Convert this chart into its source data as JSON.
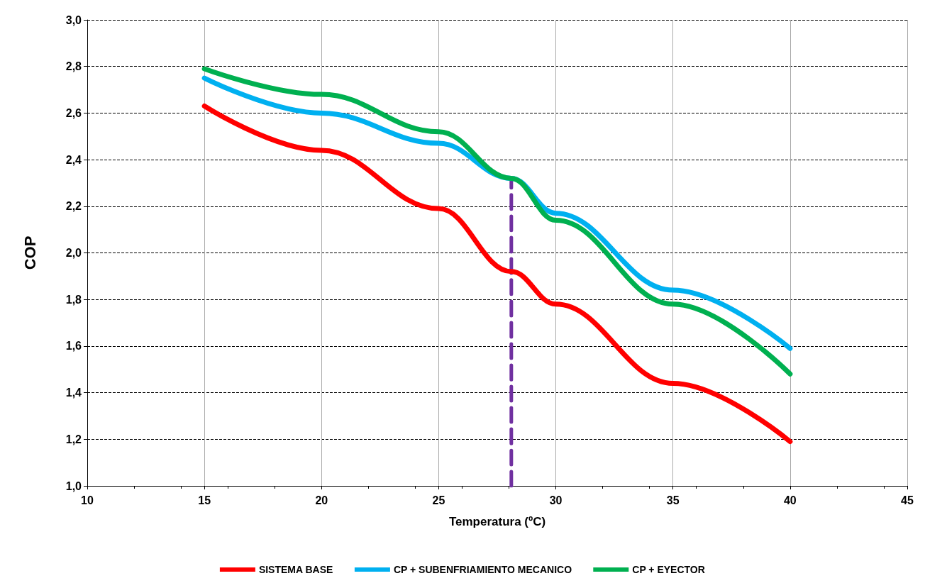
{
  "chart_data": {
    "type": "line",
    "xlabel": "Temperatura (ºC)",
    "ylabel": "COP",
    "xlim": [
      10,
      45
    ],
    "xticks": [
      10,
      15,
      20,
      25,
      30,
      35,
      40,
      45
    ],
    "ylim": [
      1.0,
      3.0
    ],
    "yticks": [
      {
        "value": 1.0,
        "label": "1,0"
      },
      {
        "value": 1.2,
        "label": "1,2"
      },
      {
        "value": 1.4,
        "label": "1,4"
      },
      {
        "value": 1.6,
        "label": "1,6"
      },
      {
        "value": 1.8,
        "label": "1,8"
      },
      {
        "value": 2.0,
        "label": "2,0"
      },
      {
        "value": 2.2,
        "label": "2,2"
      },
      {
        "value": 2.4,
        "label": "2,4"
      },
      {
        "value": 2.6,
        "label": "2,6"
      },
      {
        "value": 2.8,
        "label": "2,8"
      },
      {
        "value": 3.0,
        "label": "3,0"
      }
    ],
    "grid": true,
    "legend": "bottom",
    "marker": "none",
    "line_style": "solid",
    "x": [
      15,
      20,
      25,
      28.1,
      30,
      35,
      40
    ],
    "series": [
      {
        "name": "SISTEMA BASE",
        "color": "#ff0000",
        "values": [
          2.63,
          2.44,
          2.19,
          1.92,
          1.78,
          1.44,
          1.19
        ]
      },
      {
        "name": "CP + SUBENFRIAMIENTO MECANICO",
        "color": "#00b0f0",
        "values": [
          2.75,
          2.6,
          2.47,
          2.32,
          2.17,
          1.84,
          1.59
        ]
      },
      {
        "name": "CP + EYECTOR",
        "color": "#00b050",
        "values": [
          2.79,
          2.68,
          2.52,
          2.32,
          2.14,
          1.78,
          1.48
        ]
      },
      {
        "type": "line",
        "color": "#7030a0",
        "line_style": "dashed",
        "x": [
          28.1,
          28.1
        ],
        "values": [
          1.0,
          2.32
        ]
      }
    ]
  }
}
